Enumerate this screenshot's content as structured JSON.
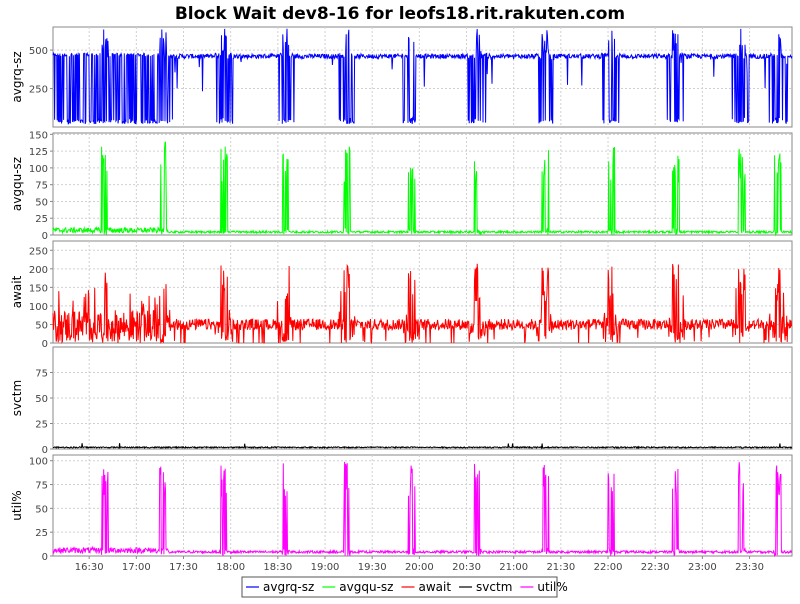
{
  "chart_data": {
    "type": "line",
    "title": "Block Wait dev8-16 for leofs18.rit.rakuten.com",
    "x_ticks": [
      "16:30",
      "17:00",
      "17:30",
      "18:00",
      "18:30",
      "19:00",
      "19:30",
      "20:00",
      "20:30",
      "21:00",
      "21:30",
      "22:00",
      "22:30",
      "23:00",
      "23:30"
    ],
    "x_range": [
      "16:07",
      "23:57"
    ],
    "grid": true,
    "legend_position": "bottom",
    "spike_times": [
      "16:40",
      "17:17",
      "17:56",
      "18:35",
      "19:14",
      "19:55",
      "20:37",
      "21:20",
      "22:02",
      "22:43",
      "23:25",
      "23:48"
    ],
    "panels": [
      {
        "name": "avgrq-sz",
        "ylabel": "avgrq-sz",
        "color": "#0000ff",
        "yticks": [
          "250",
          "500"
        ],
        "ytick_values": [
          250,
          500
        ],
        "ylim": [
          0,
          650
        ],
        "description_values": {
          "baseline": 460,
          "low": 20,
          "peak": 640
        }
      },
      {
        "name": "avgqu-sz",
        "ylabel": "avgqu-sz",
        "color": "#00ff00",
        "yticks": [
          "0",
          "25",
          "50",
          "75",
          "100",
          "125",
          "150"
        ],
        "ytick_values": [
          0,
          25,
          50,
          75,
          100,
          125,
          150
        ],
        "ylim": [
          0,
          152
        ],
        "description_values": {
          "baseline": 3,
          "peak": 140
        }
      },
      {
        "name": "await",
        "ylabel": "await",
        "color": "#ff0000",
        "yticks": [
          "0",
          "50",
          "100",
          "150",
          "200",
          "250"
        ],
        "ytick_values": [
          0,
          50,
          100,
          150,
          200,
          250
        ],
        "ylim": [
          0,
          275
        ],
        "description_values": {
          "baseline": 50,
          "peak": 215
        }
      },
      {
        "name": "svctm",
        "ylabel": "svctm",
        "color": "#000000",
        "yticks": [
          "0",
          "25",
          "50",
          "75"
        ],
        "ytick_values": [
          0,
          25,
          50,
          75
        ],
        "ylim": [
          0,
          100
        ],
        "description_values": {
          "baseline": 1,
          "peak": 4
        }
      },
      {
        "name": "util%",
        "ylabel": "util%",
        "color": "#ff00ff",
        "yticks": [
          "0",
          "25",
          "50",
          "75",
          "100"
        ],
        "ytick_values": [
          0,
          25,
          50,
          75,
          100
        ],
        "ylim": [
          0,
          106
        ],
        "description_values": {
          "baseline": 3,
          "peak": 100
        }
      }
    ],
    "legend": [
      {
        "label": "avgrq-sz",
        "color": "#0000ff"
      },
      {
        "label": "avgqu-sz",
        "color": "#00ff00"
      },
      {
        "label": "await",
        "color": "#ff0000"
      },
      {
        "label": "svctm",
        "color": "#000000"
      },
      {
        "label": "util%",
        "color": "#ff00ff"
      }
    ]
  }
}
